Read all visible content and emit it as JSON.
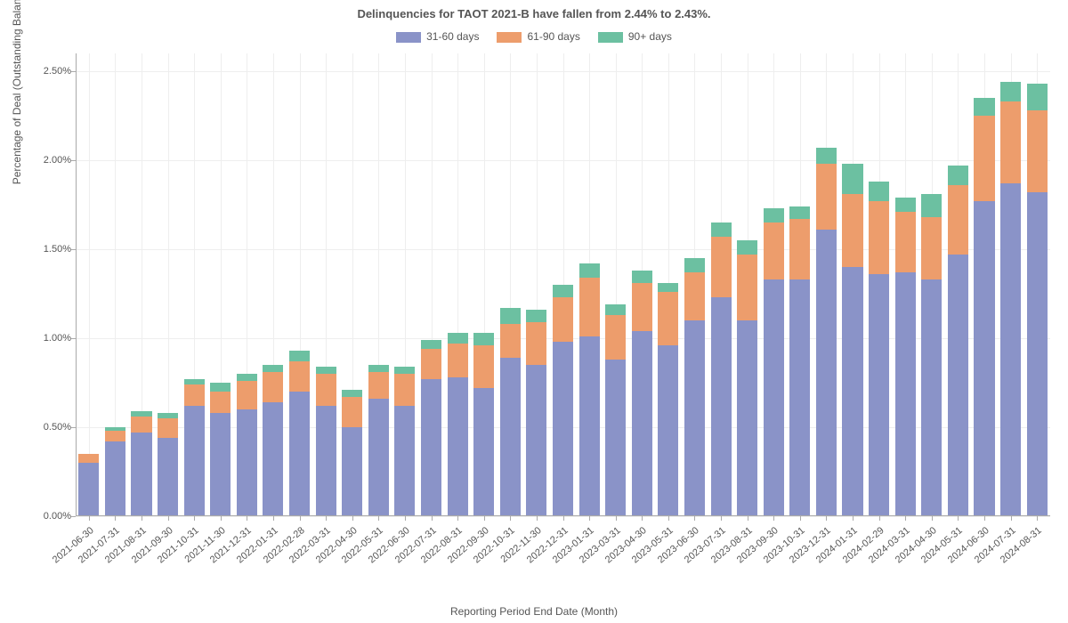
{
  "title": "Delinquencies for TAOT 2021-B have fallen from 2.44% to 2.43%.",
  "title_fontsize": 13,
  "x_axis_label": "Reporting Period End Date (Month)",
  "y_axis_label": "Percentage of Deal (Outstanding Balance)",
  "axis_label_fontsize": 12,
  "tick_fontsize": 11,
  "legend_fontsize": 12,
  "background_color": "#ffffff",
  "grid_color": "#eeeeee",
  "axis_color": "#aaaaaa",
  "text_color": "#555555",
  "series": [
    {
      "name": "31-60 days",
      "color": "#8a93c8"
    },
    {
      "name": "61-90 days",
      "color": "#ed9d6c"
    },
    {
      "name": "90+ days",
      "color": "#6cc0a1"
    }
  ],
  "y_axis": {
    "min": 0.0,
    "max": 2.6,
    "ticks": [
      0.0,
      0.5,
      1.0,
      1.5,
      2.0,
      2.5
    ],
    "tick_labels": [
      "0.00%",
      "0.50%",
      "1.00%",
      "1.50%",
      "2.00%",
      "2.50%"
    ]
  },
  "bar_width_ratio": 0.78,
  "categories": [
    "2021-06-30",
    "2021-07-31",
    "2021-08-31",
    "2021-09-30",
    "2021-10-31",
    "2021-11-30",
    "2021-12-31",
    "2022-01-31",
    "2022-02-28",
    "2022-03-31",
    "2022-04-30",
    "2022-05-31",
    "2022-06-30",
    "2022-07-31",
    "2022-08-31",
    "2022-09-30",
    "2022-10-31",
    "2022-11-30",
    "2022-12-31",
    "2023-01-31",
    "2023-03-31",
    "2023-04-30",
    "2023-05-31",
    "2023-06-30",
    "2023-07-31",
    "2023-08-31",
    "2023-09-30",
    "2023-10-31",
    "2023-12-31",
    "2024-01-31",
    "2024-02-29",
    "2024-03-31",
    "2024-04-30",
    "2024-05-31",
    "2024-06-30",
    "2024-07-31",
    "2024-08-31"
  ],
  "data": {
    "31-60 days": [
      0.3,
      0.42,
      0.47,
      0.44,
      0.62,
      0.58,
      0.6,
      0.64,
      0.7,
      0.62,
      0.5,
      0.66,
      0.62,
      0.77,
      0.78,
      0.72,
      0.89,
      0.85,
      0.98,
      1.01,
      0.88,
      1.04,
      0.96,
      1.1,
      1.23,
      1.1,
      1.33,
      1.33,
      1.61,
      1.4,
      1.36,
      1.37,
      1.33,
      1.47,
      1.77,
      1.87,
      1.82
    ],
    "61-90 days": [
      0.05,
      0.06,
      0.09,
      0.11,
      0.12,
      0.12,
      0.16,
      0.17,
      0.17,
      0.18,
      0.17,
      0.15,
      0.18,
      0.17,
      0.19,
      0.24,
      0.19,
      0.24,
      0.25,
      0.33,
      0.25,
      0.27,
      0.3,
      0.27,
      0.34,
      0.37,
      0.32,
      0.34,
      0.37,
      0.41,
      0.41,
      0.34,
      0.35,
      0.39,
      0.48,
      0.46,
      0.46
    ],
    "90+ days": [
      0.0,
      0.02,
      0.03,
      0.03,
      0.03,
      0.05,
      0.04,
      0.04,
      0.06,
      0.04,
      0.04,
      0.04,
      0.04,
      0.05,
      0.06,
      0.07,
      0.09,
      0.07,
      0.07,
      0.08,
      0.06,
      0.07,
      0.05,
      0.08,
      0.08,
      0.08,
      0.08,
      0.07,
      0.09,
      0.17,
      0.11,
      0.08,
      0.13,
      0.11,
      0.1,
      0.11,
      0.15
    ]
  }
}
